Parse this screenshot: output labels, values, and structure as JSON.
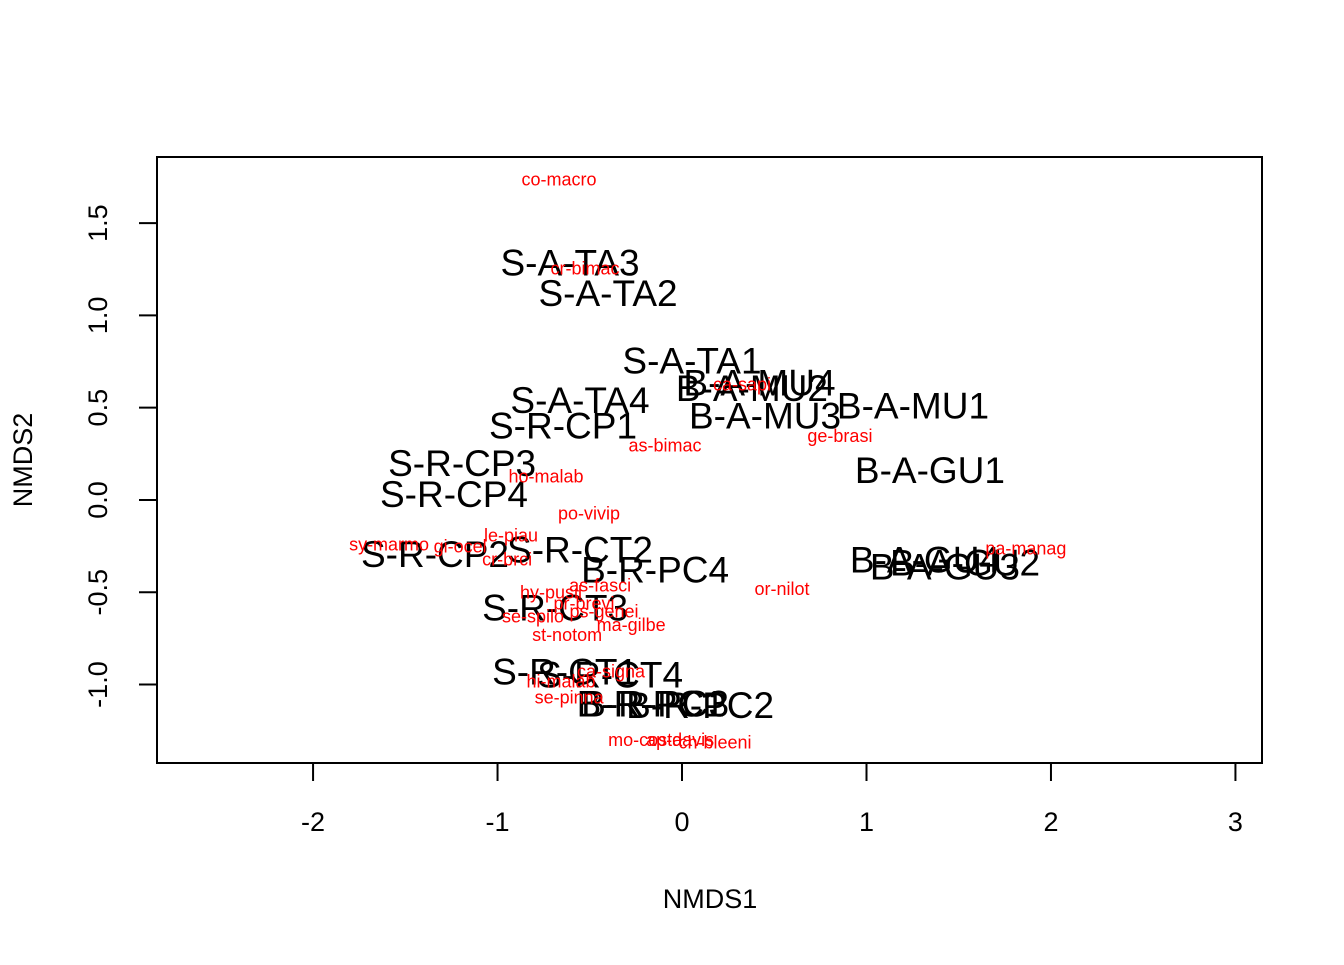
{
  "chart_data": {
    "type": "scatter",
    "x_label": "NMDS1",
    "y_label": "NMDS2",
    "xlim": [
      -2.846,
      3.144
    ],
    "ylim": [
      -1.425,
      1.858
    ],
    "xticks": [
      -2,
      -1,
      0,
      1,
      2,
      3
    ],
    "yticks": [
      {
        "value": -1,
        "label": "-1.0"
      },
      -0.5,
      {
        "value": 0,
        "label": "0.0"
      },
      0.5,
      {
        "value": 1,
        "label": "1.0"
      },
      1.5
    ],
    "series": [
      {
        "name": "sites",
        "color": "#000000",
        "labels": [
          "S-A-TA3",
          "S-A-TA2",
          "S-A-TA1",
          "B-A-MU4",
          "B-A-MU2",
          "S-A-TA4",
          "B-A-MU3",
          "B-A-MU1",
          "S-R-CP1",
          "S-R-CP3",
          "S-R-CP4",
          "B-A-GU1",
          "S-R-CP2",
          "S-R-CT2",
          "B-R-PC4",
          "B-A-GU4",
          "B-A-GU3",
          "B-A-GU2",
          "S-R-CT3",
          "S-R-CT1",
          "S-R-CT4",
          "B-R-PC1",
          "B-R-PC3",
          "B-R-PC2"
        ],
        "x": [
          -0.607,
          -0.401,
          0.054,
          0.42,
          0.379,
          -0.553,
          0.45,
          1.252,
          -0.645,
          -1.192,
          -1.236,
          1.344,
          -1.339,
          -0.553,
          -0.146,
          1.317,
          1.425,
          1.534,
          -0.688,
          -0.634,
          -0.39,
          -0.17,
          -0.146,
          0.098
        ],
        "y": [
          1.268,
          1.105,
          0.737,
          0.62,
          0.59,
          0.525,
          0.439,
          0.493,
          0.385,
          0.184,
          0.016,
          0.146,
          -0.309,
          -0.287,
          -0.395,
          -0.341,
          -0.379,
          -0.357,
          -0.601,
          -0.948,
          -0.964,
          -1.121,
          -1.121,
          -1.127
        ]
      },
      {
        "name": "species",
        "color": "#ff0000",
        "labels": [
          "co-macro",
          "cr-bimac",
          "ca-sapi",
          "ge-brasi",
          "as-bimac",
          "ho-malab",
          "po-vivip",
          "le-piau",
          "sy-marmo",
          "gi-ocel",
          "cr-brci",
          "pa-manag",
          "or-nilot",
          "as-fasci",
          "hy-pusil",
          "pr-brevi",
          "se-spilo",
          "ps-genei",
          "ma-gilbe",
          "st-notom",
          "ca-signa",
          "hi-malab",
          "se-pinna",
          "mo-costa",
          "ap-davis",
          "ch-bleeni"
        ],
        "x": [
          -0.667,
          -0.526,
          0.325,
          0.856,
          -0.092,
          -0.737,
          -0.504,
          -0.927,
          -1.588,
          -1.203,
          -0.948,
          1.864,
          0.542,
          -0.444,
          -0.71,
          -0.531,
          -0.808,
          -0.423,
          -0.276,
          -0.623,
          -0.385,
          -0.656,
          -0.612,
          -0.2,
          -0.01,
          0.179
        ],
        "y": [
          1.728,
          1.246,
          0.618,
          0.341,
          0.287,
          0.119,
          -0.081,
          -0.2,
          -0.249,
          -0.26,
          -0.33,
          -0.271,
          -0.488,
          -0.471,
          -0.509,
          -0.569,
          -0.639,
          -0.612,
          -0.683,
          -0.737,
          -0.937,
          -0.991,
          -1.078,
          -1.306,
          -1.306,
          -1.322
        ]
      }
    ]
  }
}
